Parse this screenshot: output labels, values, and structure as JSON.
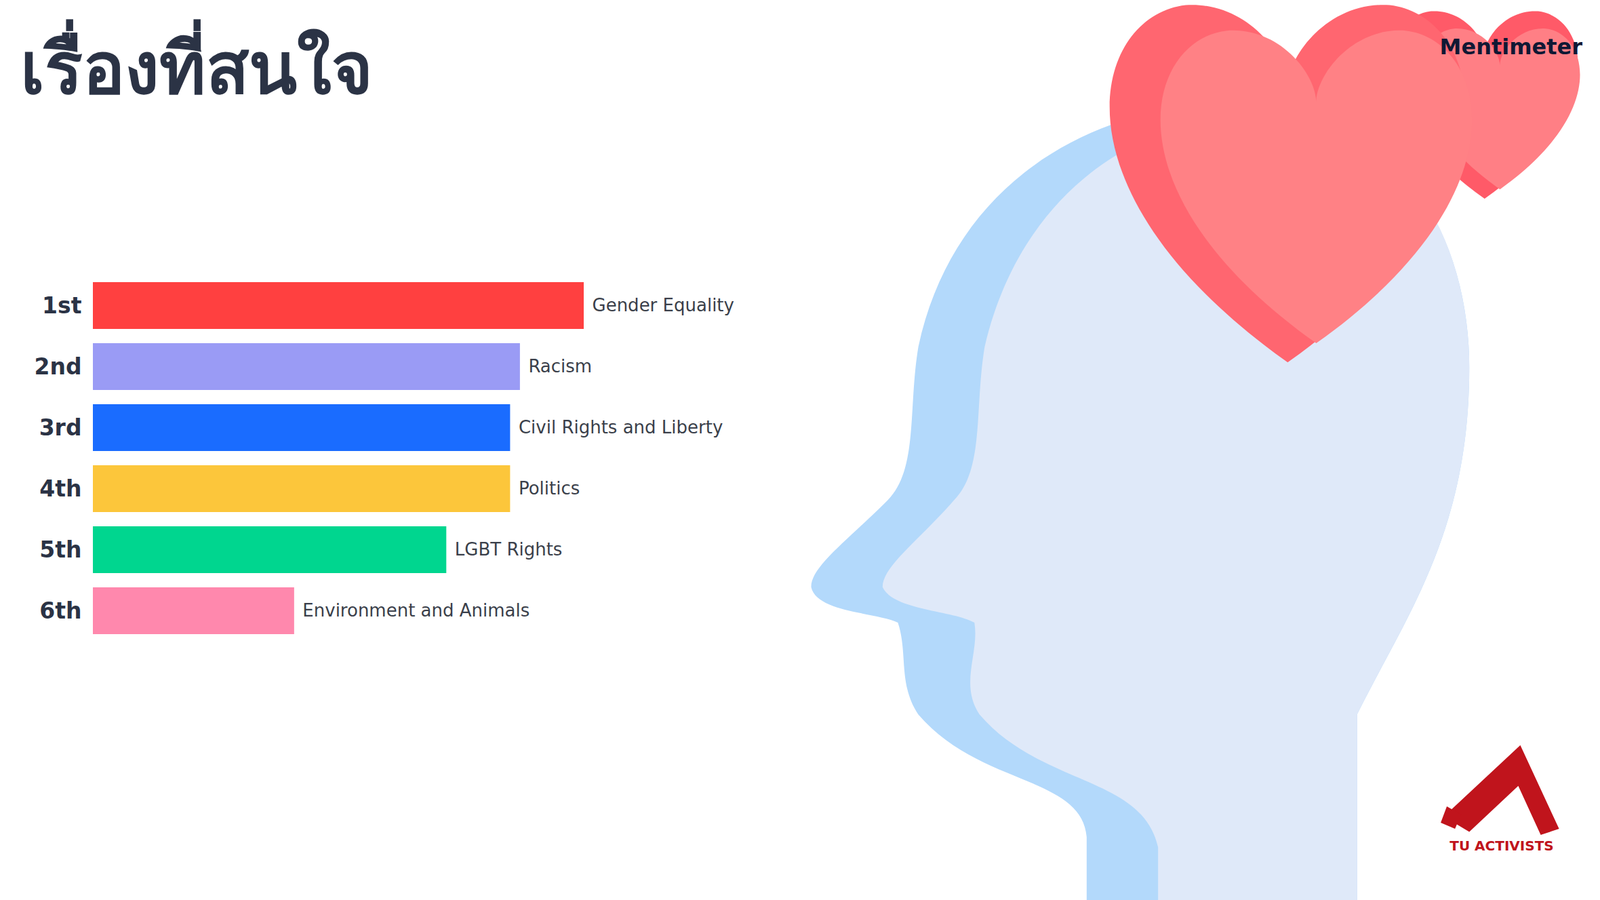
{
  "chart_data": {
    "type": "bar",
    "title": "เรื่องที่สนใจ",
    "orientation": "horizontal",
    "categories": [
      "Gender Equality",
      "Racism",
      "Civil Rights and Liberty",
      "Politics",
      "LGBT Rights",
      "Environment and Animals"
    ],
    "rank_labels": [
      "1st",
      "2nd",
      "3rd",
      "4th",
      "5th",
      "6th"
    ],
    "values": [
      100,
      87,
      85,
      85,
      72,
      41
    ],
    "colors": [
      "#ff4040",
      "#9a9bf5",
      "#1a6cff",
      "#fcc63b",
      "#00d68f",
      "#ff88ad"
    ],
    "xlim": [
      0,
      100
    ],
    "tick_labels": "y",
    "grid": false,
    "data_labels": false,
    "annotations": [
      "Mentimeter",
      "TU ACTIVISTS"
    ]
  }
}
